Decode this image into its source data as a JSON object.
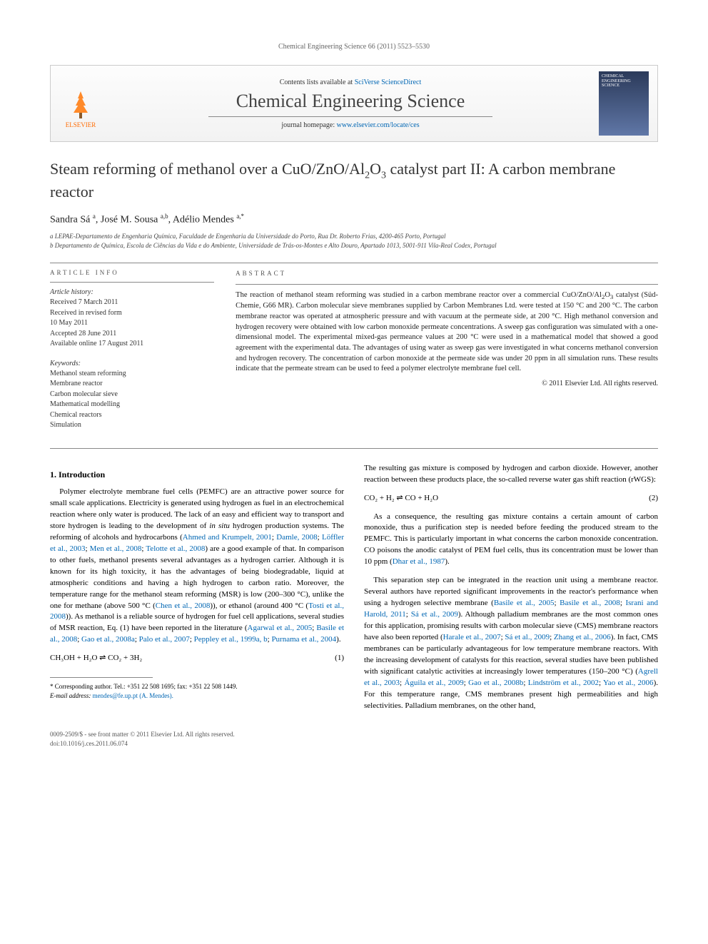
{
  "running_header": "Chemical Engineering Science 66 (2011) 5523–5530",
  "masthead": {
    "contents_line_prefix": "Contents lists available at ",
    "contents_link": "SciVerse ScienceDirect",
    "journal": "Chemical Engineering Science",
    "homepage_prefix": "journal homepage: ",
    "homepage_link": "www.elsevier.com/locate/ces",
    "publisher_name": "ELSEVIER",
    "cover_label": "CHEMICAL ENGINEERING SCIENCE"
  },
  "title_html": "Steam reforming of methanol over a CuO/ZnO/Al<sub>2</sub>O<sub>3</sub> catalyst part II: A carbon membrane reactor",
  "authors_html": "Sandra Sá <sup>a</sup>, José M. Sousa <sup>a,b</sup>, Adélio Mendes <sup>a,*</sup>",
  "affiliations": [
    "a LEPAE-Departamento de Engenharia Química, Faculdade de Engenharia da Universidade do Porto, Rua Dr. Roberto Frias, 4200-465 Porto, Portugal",
    "b Departamento de Química, Escola de Ciências da Vida e do Ambiente, Universidade de Trás-os-Montes e Alto Douro, Apartado 1013, 5001-911 Vila-Real Codex, Portugal"
  ],
  "article_info_heading": "article info",
  "abstract_heading": "abstract",
  "history_label": "Article history:",
  "history": [
    "Received 7 March 2011",
    "Received in revised form",
    "10 May 2011",
    "Accepted 28 June 2011",
    "Available online 17 August 2011"
  ],
  "keywords_label": "Keywords:",
  "keywords": [
    "Methanol steam reforming",
    "Membrane reactor",
    "Carbon molecular sieve",
    "Mathematical modelling",
    "Chemical reactors",
    "Simulation"
  ],
  "abstract_html": "The reaction of methanol steam reforming was studied in a carbon membrane reactor over a commercial CuO/ZnO/Al<sub>2</sub>O<sub>3</sub> catalyst (Süd-Chemie, G66 MR). Carbon molecular sieve membranes supplied by Carbon Membranes Ltd. were tested at 150 °C and 200 °C. The carbon membrane reactor was operated at atmospheric pressure and with vacuum at the permeate side, at 200 °C. High methanol conversion and hydrogen recovery were obtained with low carbon monoxide permeate concentrations. A sweep gas configuration was simulated with a one-dimensional model. The experimental mixed-gas permeance values at 200 °C were used in a mathematical model that showed a good agreement with the experimental data. The advantages of using water as sweep gas were investigated in what concerns methanol conversion and hydrogen recovery. The concentration of carbon monoxide at the permeate side was under 20 ppm in all simulation runs. These results indicate that the permeate stream can be used to feed a polymer electrolyte membrane fuel cell.",
  "copyright": "© 2011 Elsevier Ltd. All rights reserved.",
  "intro_heading": "1. Introduction",
  "intro_p1_html": "Polymer electrolyte membrane fuel cells (PEMFC) are an attractive power source for small scale applications. Electricity is generated using hydrogen as fuel in an electrochemical reaction where only water is produced. The lack of an easy and efficient way to transport and store hydrogen is leading to the development of <i>in situ</i> hydrogen production systems. The reforming of alcohols and hydrocarbons (<a class='ref'>Ahmed and Krumpelt, 2001</a>; <a class='ref'>Damle, 2008</a>; <a class='ref'>Löffler et al., 2003</a>; <a class='ref'>Men et al., 2008</a>; <a class='ref'>Telotte et al., 2008</a>) are a good example of that. In comparison to other fuels, methanol presents several advantages as a hydrogen carrier. Although it is known for its high toxicity, it has the advantages of being biodegradable, liquid at atmospheric conditions and having a high hydrogen to carbon ratio. Moreover, the temperature range for the methanol steam reforming (MSR) is low (200–300 °C), unlike the one for methane (above 500 °C (<a class='ref'>Chen et al., 2008</a>)), or ethanol (around 400 °C (<a class='ref'>Tosti et al., 2008</a>)). As methanol is a reliable source of hydrogen for fuel cell applications, several studies of MSR reaction, Eq. (1) have been reported in the literature (<a class='ref'>Agarwal et al., 2005</a>; <a class='ref'>Basile et al., 2008</a>; <a class='ref'>Gao et al., 2008a</a>; <a class='ref'>Palo et al., 2007</a>; <a class='ref'>Peppley et al., 1999a, b</a>; <a class='ref'>Purnama et al., 2004</a>).",
  "eq1_lhs": "CH₃OH + H₂O ⇌ CO₂ + 3H₂",
  "eq1_num": "(1)",
  "intro_p2": "The resulting gas mixture is composed by hydrogen and carbon dioxide. However, another reaction between these products place, the so-called reverse water gas shift reaction (rWGS):",
  "eq2_lhs": "CO₂ + H₂ ⇌ CO + H₂O",
  "eq2_num": "(2)",
  "intro_p3_html": "As a consequence, the resulting gas mixture contains a certain amount of carbon monoxide, thus a purification step is needed before feeding the produced stream to the PEMFC. This is particularly important in what concerns the carbon monoxide concentration. CO poisons the anodic catalyst of PEM fuel cells, thus its concentration must be lower than 10 ppm (<a class='ref'>Dhar et al., 1987</a>).",
  "intro_p4_html": "This separation step can be integrated in the reaction unit using a membrane reactor. Several authors have reported significant improvements in the reactor's performance when using a hydrogen selective membrane (<a class='ref'>Basile et al., 2005</a>; <a class='ref'>Basile et al., 2008</a>; <a class='ref'>Israni and Harold, 2011</a>; <a class='ref'>Sá et al., 2009</a>). Although palladium membranes are the most common ones for this application, promising results with carbon molecular sieve (CMS) membrane reactors have also been reported (<a class='ref'>Harale et al., 2007</a>; <a class='ref'>Sá et al., 2009</a>; <a class='ref'>Zhang et al., 2006</a>). In fact, CMS membranes can be particularly advantageous for low temperature membrane reactors. With the increasing development of catalysts for this reaction, several studies have been published with significant catalytic activities at increasingly lower temperatures (150–200 °C) (<a class='ref'>Agrell et al., 2003</a>; <a class='ref'>Águila et al., 2009</a>; <a class='ref'>Gao et al., 2008b</a>; <a class='ref'>Lindström et al., 2002</a>; <a class='ref'>Yao et al., 2006</a>). For this temperature range, CMS membranes present high permeabilities and high selectivities. Palladium membranes, on the other hand,",
  "footnote_corr": "* Corresponding author. Tel.: +351 22 508 1695; fax: +351 22 508 1449.",
  "footnote_email_label": "E-mail address:",
  "footnote_email": "mendes@fe.up.pt (A. Mendes).",
  "footer_line1": "0009-2509/$ - see front matter © 2011 Elsevier Ltd. All rights reserved.",
  "footer_line2": "doi:10.1016/j.ces.2011.06.074",
  "colors": {
    "link": "#0066b3",
    "elsevier_orange": "#ff6a00",
    "rule": "#888888",
    "text": "#000000"
  }
}
